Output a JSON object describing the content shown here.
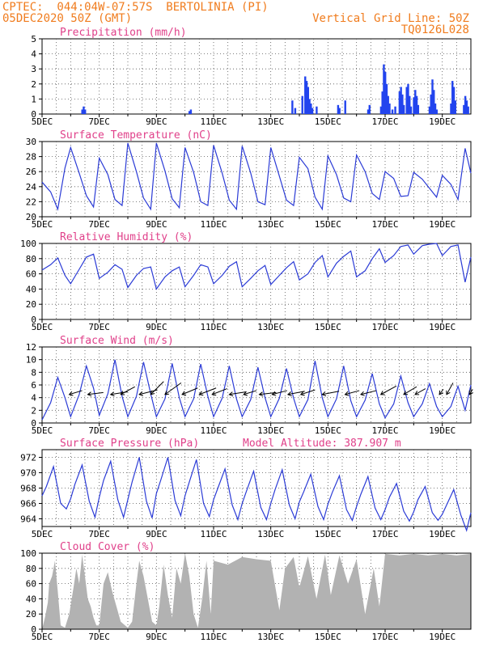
{
  "header": {
    "line1_left": "CPTEC:  044:04W-07:57S  BERTOLINIA (PI)",
    "line2_left": "05DEC2020 50Z (GMT)",
    "line1_right": "Vertical Grid Line: 50Z",
    "line2_right": "TQ0126L028"
  },
  "colors": {
    "header": "#f07c1e",
    "title": "#e0408a",
    "line": "#2b3bd6",
    "bar": "#2244ee",
    "cloud": "#b2b2b2"
  },
  "chart_data": [
    {
      "type": "bar",
      "title": "Precipitation (mm/h)",
      "ylim": [
        0,
        5
      ],
      "yticks": [
        0,
        1,
        2,
        3,
        4,
        5
      ],
      "xticks": [
        "5DEC",
        "7DEC",
        "9DEC",
        "11DEC",
        "13DEC",
        "15DEC",
        "17DEC",
        "19DEC"
      ],
      "events": [
        {
          "day": 6.4,
          "value": 0.3
        },
        {
          "day": 6.45,
          "value": 0.5
        },
        {
          "day": 6.5,
          "value": 0.3
        },
        {
          "day": 10.15,
          "value": 0.2
        },
        {
          "day": 10.2,
          "value": 0.3
        },
        {
          "day": 13.75,
          "value": 0.9
        },
        {
          "day": 13.85,
          "value": 0.4
        },
        {
          "day": 14.1,
          "value": 1.2
        },
        {
          "day": 14.2,
          "value": 2.5
        },
        {
          "day": 14.25,
          "value": 2.2
        },
        {
          "day": 14.3,
          "value": 1.8
        },
        {
          "day": 14.35,
          "value": 1.0
        },
        {
          "day": 14.4,
          "value": 0.7
        },
        {
          "day": 14.45,
          "value": 0.4
        },
        {
          "day": 14.6,
          "value": 0.5
        },
        {
          "day": 15.35,
          "value": 0.6
        },
        {
          "day": 15.4,
          "value": 0.4
        },
        {
          "day": 15.6,
          "value": 0.9
        },
        {
          "day": 16.4,
          "value": 0.3
        },
        {
          "day": 16.45,
          "value": 0.6
        },
        {
          "day": 16.85,
          "value": 0.5
        },
        {
          "day": 16.9,
          "value": 1.5
        },
        {
          "day": 16.95,
          "value": 3.3
        },
        {
          "day": 17.0,
          "value": 2.8
        },
        {
          "day": 17.05,
          "value": 2.0
        },
        {
          "day": 17.1,
          "value": 1.2
        },
        {
          "day": 17.15,
          "value": 0.7
        },
        {
          "day": 17.25,
          "value": 0.3
        },
        {
          "day": 17.35,
          "value": 0.5
        },
        {
          "day": 17.5,
          "value": 1.5
        },
        {
          "day": 17.55,
          "value": 1.8
        },
        {
          "day": 17.6,
          "value": 1.3
        },
        {
          "day": 17.65,
          "value": 0.6
        },
        {
          "day": 17.75,
          "value": 1.8
        },
        {
          "day": 17.8,
          "value": 2.0
        },
        {
          "day": 17.85,
          "value": 1.2
        },
        {
          "day": 17.9,
          "value": 0.5
        },
        {
          "day": 18.0,
          "value": 1.1
        },
        {
          "day": 18.05,
          "value": 1.6
        },
        {
          "day": 18.1,
          "value": 1.2
        },
        {
          "day": 18.15,
          "value": 0.6
        },
        {
          "day": 18.55,
          "value": 0.5
        },
        {
          "day": 18.6,
          "value": 1.3
        },
        {
          "day": 18.65,
          "value": 2.3
        },
        {
          "day": 18.7,
          "value": 1.6
        },
        {
          "day": 18.75,
          "value": 0.7
        },
        {
          "day": 18.8,
          "value": 0.3
        },
        {
          "day": 19.3,
          "value": 0.7
        },
        {
          "day": 19.35,
          "value": 2.2
        },
        {
          "day": 19.4,
          "value": 1.8
        },
        {
          "day": 19.45,
          "value": 0.9
        },
        {
          "day": 19.75,
          "value": 0.6
        },
        {
          "day": 19.8,
          "value": 1.2
        },
        {
          "day": 19.85,
          "value": 0.9
        },
        {
          "day": 19.9,
          "value": 0.5
        }
      ]
    },
    {
      "type": "line",
      "title": "Surface Temperature (nC)",
      "ylim": [
        20,
        30
      ],
      "yticks": [
        20,
        22,
        24,
        26,
        28,
        30
      ],
      "xticks": [
        "5DEC",
        "7DEC",
        "9DEC",
        "11DEC",
        "13DEC",
        "15DEC",
        "17DEC",
        "19DEC"
      ],
      "x": [
        5.0,
        5.3,
        5.55,
        5.8,
        6.0,
        6.3,
        6.55,
        6.8,
        7.0,
        7.3,
        7.55,
        7.8,
        8.0,
        8.3,
        8.55,
        8.8,
        9.0,
        9.3,
        9.55,
        9.8,
        10.0,
        10.3,
        10.55,
        10.8,
        11.0,
        11.3,
        11.55,
        11.8,
        12.0,
        12.3,
        12.55,
        12.8,
        13.0,
        13.3,
        13.55,
        13.8,
        14.0,
        14.3,
        14.55,
        14.8,
        15.0,
        15.3,
        15.55,
        15.8,
        16.0,
        16.3,
        16.55,
        16.8,
        17.0,
        17.3,
        17.55,
        17.8,
        18.0,
        18.3,
        18.55,
        18.8,
        19.0,
        19.3,
        19.55,
        19.8,
        20.0
      ],
      "values": [
        24.6,
        23.3,
        21.0,
        26.5,
        29.2,
        25.8,
        22.8,
        21.3,
        27.8,
        25.6,
        22.3,
        21.5,
        29.8,
        26.0,
        22.5,
        21.0,
        29.8,
        26.1,
        22.4,
        21.2,
        29.2,
        25.9,
        22.0,
        21.5,
        29.5,
        25.8,
        22.2,
        21.0,
        29.4,
        25.8,
        22.0,
        21.6,
        29.2,
        25.4,
        22.2,
        21.5,
        27.9,
        26.4,
        22.6,
        21.0,
        28.1,
        25.6,
        22.5,
        22.0,
        28.2,
        26.0,
        23.1,
        22.3,
        26.0,
        25.1,
        22.7,
        22.8,
        25.9,
        25.0,
        23.8,
        22.6,
        25.5,
        24.3,
        22.3,
        29.1,
        25.8
      ]
    },
    {
      "type": "line",
      "title": "Relative Humidity (%)",
      "ylim": [
        0,
        100
      ],
      "yticks": [
        0,
        20,
        40,
        60,
        80,
        100
      ],
      "xticks": [
        "5DEC",
        "7DEC",
        "9DEC",
        "11DEC",
        "13DEC",
        "15DEC",
        "17DEC",
        "19DEC"
      ],
      "x": [
        5.0,
        5.3,
        5.55,
        5.8,
        6.0,
        6.3,
        6.55,
        6.8,
        7.0,
        7.3,
        7.55,
        7.8,
        8.0,
        8.3,
        8.55,
        8.8,
        9.0,
        9.3,
        9.55,
        9.8,
        10.0,
        10.3,
        10.55,
        10.8,
        11.0,
        11.3,
        11.55,
        11.8,
        12.0,
        12.3,
        12.55,
        12.8,
        13.0,
        13.3,
        13.55,
        13.8,
        14.0,
        14.3,
        14.55,
        14.8,
        15.0,
        15.3,
        15.55,
        15.8,
        16.0,
        16.3,
        16.55,
        16.8,
        17.0,
        17.3,
        17.55,
        17.8,
        18.0,
        18.3,
        18.55,
        18.8,
        19.0,
        19.3,
        19.55,
        19.8,
        20.0
      ],
      "values": [
        65,
        72,
        81,
        58,
        47,
        66,
        82,
        86,
        54,
        62,
        72,
        66,
        42,
        58,
        67,
        69,
        40,
        56,
        64,
        69,
        43,
        58,
        72,
        69,
        47,
        58,
        70,
        76,
        43,
        54,
        64,
        71,
        46,
        58,
        68,
        76,
        52,
        60,
        75,
        84,
        56,
        74,
        83,
        90,
        56,
        64,
        80,
        93,
        75,
        84,
        96,
        98,
        86,
        97,
        99,
        100,
        84,
        96,
        98,
        49,
        82
      ]
    },
    {
      "type": "line",
      "title": "Surface Wind (m/s)",
      "ylim": [
        0,
        12
      ],
      "yticks": [
        0,
        2,
        4,
        6,
        8,
        10,
        12
      ],
      "xticks": [
        "5DEC",
        "7DEC",
        "9DEC",
        "11DEC",
        "13DEC",
        "15DEC",
        "17DEC",
        "19DEC"
      ],
      "x": [
        5.0,
        5.3,
        5.55,
        5.8,
        6.0,
        6.3,
        6.55,
        6.8,
        7.0,
        7.3,
        7.55,
        7.8,
        8.0,
        8.3,
        8.55,
        8.8,
        9.0,
        9.3,
        9.55,
        9.8,
        10.0,
        10.3,
        10.55,
        10.8,
        11.0,
        11.3,
        11.55,
        11.8,
        12.0,
        12.3,
        12.55,
        12.8,
        13.0,
        13.3,
        13.55,
        13.8,
        14.0,
        14.3,
        14.55,
        14.8,
        15.0,
        15.3,
        15.55,
        15.8,
        16.0,
        16.3,
        16.55,
        16.8,
        17.0,
        17.3,
        17.55,
        17.8,
        18.0,
        18.3,
        18.55,
        18.8,
        19.0,
        19.3,
        19.55,
        19.8,
        20.0
      ],
      "values": [
        0.5,
        3.2,
        7.2,
        4.0,
        1.0,
        4.5,
        9.0,
        5.5,
        1.2,
        4.6,
        10.0,
        4.2,
        1.0,
        4.2,
        9.6,
        4.6,
        1.0,
        3.8,
        9.4,
        4.0,
        1.0,
        3.8,
        9.3,
        4.2,
        1.0,
        3.9,
        9.0,
        3.8,
        1.0,
        3.7,
        8.8,
        4.0,
        1.0,
        3.9,
        8.6,
        3.9,
        1.0,
        3.7,
        9.8,
        4.0,
        1.0,
        3.8,
        9.0,
        3.5,
        1.0,
        3.6,
        7.8,
        3.0,
        0.8,
        3.0,
        7.4,
        3.2,
        1.0,
        3.0,
        6.2,
        2.6,
        1.0,
        2.6,
        5.8,
        2.0,
        6.0
      ],
      "vectors": [
        {
          "day": 5.95,
          "u": 2.0,
          "v": 0.6
        },
        {
          "day": 6.6,
          "u": 2.4,
          "v": 0.3
        },
        {
          "day": 7.4,
          "u": 2.6,
          "v": 0.4
        },
        {
          "day": 7.75,
          "u": 2.2,
          "v": 1.2
        },
        {
          "day": 8.4,
          "u": 2.8,
          "v": 0.7
        },
        {
          "day": 8.8,
          "u": 2.0,
          "v": 2.0
        },
        {
          "day": 9.3,
          "u": 2.5,
          "v": 1.8
        },
        {
          "day": 9.9,
          "u": 2.4,
          "v": 1.0
        },
        {
          "day": 10.5,
          "u": 2.6,
          "v": 1.0
        },
        {
          "day": 10.95,
          "u": 2.3,
          "v": 0.9
        },
        {
          "day": 11.55,
          "u": 2.6,
          "v": 0.4
        },
        {
          "day": 12.05,
          "u": 2.0,
          "v": 0.6
        },
        {
          "day": 12.6,
          "u": 2.6,
          "v": 0.3
        },
        {
          "day": 13.05,
          "u": 2.3,
          "v": 0.6
        },
        {
          "day": 13.6,
          "u": 2.6,
          "v": 0.5
        },
        {
          "day": 14.05,
          "u": 2.2,
          "v": 0.7
        },
        {
          "day": 14.8,
          "u": 2.6,
          "v": 0.5
        },
        {
          "day": 15.6,
          "u": 2.2,
          "v": 0.6
        },
        {
          "day": 16.15,
          "u": 2.4,
          "v": 0.6
        },
        {
          "day": 16.85,
          "u": 2.4,
          "v": 1.3
        },
        {
          "day": 17.65,
          "u": 2.0,
          "v": 1.2
        },
        {
          "day": 18.05,
          "u": 1.6,
          "v": 0.9
        },
        {
          "day": 18.9,
          "u": 0.6,
          "v": 0.8
        },
        {
          "day": 19.15,
          "u": 1.0,
          "v": 1.8
        },
        {
          "day": 19.95,
          "u": 0.5,
          "v": 0.8
        }
      ]
    },
    {
      "type": "line",
      "title": "Surface Pressure (hPa)",
      "annotation": "Model Altitude: 387.907 m",
      "ylim": [
        963,
        973
      ],
      "yticks": [
        964,
        966,
        968,
        970,
        972
      ],
      "xticks": [
        "5DEC",
        "7DEC",
        "9DEC",
        "11DEC",
        "13DEC",
        "15DEC",
        "17DEC",
        "19DEC"
      ],
      "x": [
        5.0,
        5.15,
        5.4,
        5.65,
        5.85,
        6.0,
        6.15,
        6.4,
        6.65,
        6.85,
        7.0,
        7.15,
        7.4,
        7.65,
        7.85,
        8.0,
        8.15,
        8.4,
        8.65,
        8.85,
        9.0,
        9.15,
        9.4,
        9.65,
        9.85,
        10.0,
        10.15,
        10.4,
        10.65,
        10.85,
        11.0,
        11.15,
        11.4,
        11.65,
        11.85,
        12.0,
        12.15,
        12.4,
        12.65,
        12.85,
        13.0,
        13.15,
        13.4,
        13.65,
        13.85,
        14.0,
        14.15,
        14.4,
        14.65,
        14.85,
        15.0,
        15.15,
        15.4,
        15.65,
        15.85,
        16.0,
        16.15,
        16.4,
        16.65,
        16.85,
        17.0,
        17.15,
        17.4,
        17.65,
        17.85,
        18.0,
        18.15,
        18.4,
        18.65,
        18.85,
        19.0,
        19.15,
        19.4,
        19.65,
        19.85,
        20.0
      ],
      "values": [
        967.0,
        968.2,
        970.8,
        966.0,
        965.3,
        966.6,
        968.5,
        971.0,
        966.3,
        964.2,
        966.8,
        969.0,
        971.5,
        966.5,
        964.2,
        966.5,
        968.8,
        972.0,
        966.3,
        964.1,
        967.3,
        969.0,
        972.0,
        966.4,
        964.4,
        967.0,
        968.8,
        971.7,
        966.0,
        964.3,
        966.5,
        968.0,
        970.5,
        965.8,
        963.9,
        966.0,
        967.6,
        970.2,
        965.5,
        963.9,
        966.0,
        967.8,
        970.4,
        965.8,
        964.0,
        966.2,
        967.5,
        969.8,
        965.6,
        963.9,
        965.9,
        967.4,
        969.6,
        965.2,
        963.8,
        965.6,
        967.2,
        969.5,
        965.4,
        963.9,
        965.2,
        966.8,
        968.6,
        965.0,
        963.7,
        964.9,
        966.5,
        968.2,
        964.8,
        963.8,
        964.6,
        965.8,
        967.8,
        964.5,
        962.5,
        964.8
      ]
    },
    {
      "type": "area",
      "title": "Cloud Cover (%)",
      "ylim": [
        0,
        100
      ],
      "yticks": [
        0,
        20,
        40,
        60,
        80,
        100
      ],
      "xticks": [
        "5DEC",
        "7DEC",
        "9DEC",
        "11DEC",
        "13DEC",
        "15DEC",
        "17DEC",
        "19DEC"
      ],
      "x": [
        5.0,
        5.1,
        5.2,
        5.25,
        5.35,
        5.45,
        5.55,
        5.65,
        5.8,
        5.95,
        6.1,
        6.2,
        6.3,
        6.4,
        6.5,
        6.6,
        6.7,
        6.8,
        6.9,
        7.0,
        7.15,
        7.3,
        7.45,
        7.6,
        7.75,
        7.9,
        8.0,
        8.15,
        8.3,
        8.4,
        8.55,
        8.7,
        8.85,
        9.0,
        9.1,
        9.25,
        9.4,
        9.55,
        9.7,
        9.85,
        10.0,
        10.15,
        10.3,
        10.45,
        10.6,
        10.75,
        10.9,
        11.0,
        11.5,
        12.0,
        12.5,
        13.0,
        13.3,
        13.5,
        13.8,
        14.0,
        14.3,
        14.6,
        14.9,
        15.1,
        15.4,
        15.7,
        16.0,
        16.3,
        16.6,
        16.8,
        17.0,
        17.5,
        18.0,
        18.5,
        19.0,
        19.5,
        20.0
      ],
      "values": [
        0,
        15,
        35,
        60,
        70,
        90,
        50,
        5,
        2,
        20,
        55,
        80,
        60,
        98,
        70,
        40,
        30,
        15,
        5,
        5,
        60,
        75,
        50,
        30,
        10,
        5,
        2,
        10,
        60,
        90,
        70,
        40,
        10,
        5,
        30,
        85,
        45,
        15,
        80,
        60,
        100,
        70,
        20,
        2,
        40,
        90,
        20,
        90,
        85,
        95,
        92,
        90,
        25,
        80,
        95,
        55,
        96,
        40,
        98,
        45,
        97,
        60,
        92,
        20,
        80,
        30,
        99,
        97,
        99,
        97,
        99,
        97,
        99
      ]
    }
  ]
}
